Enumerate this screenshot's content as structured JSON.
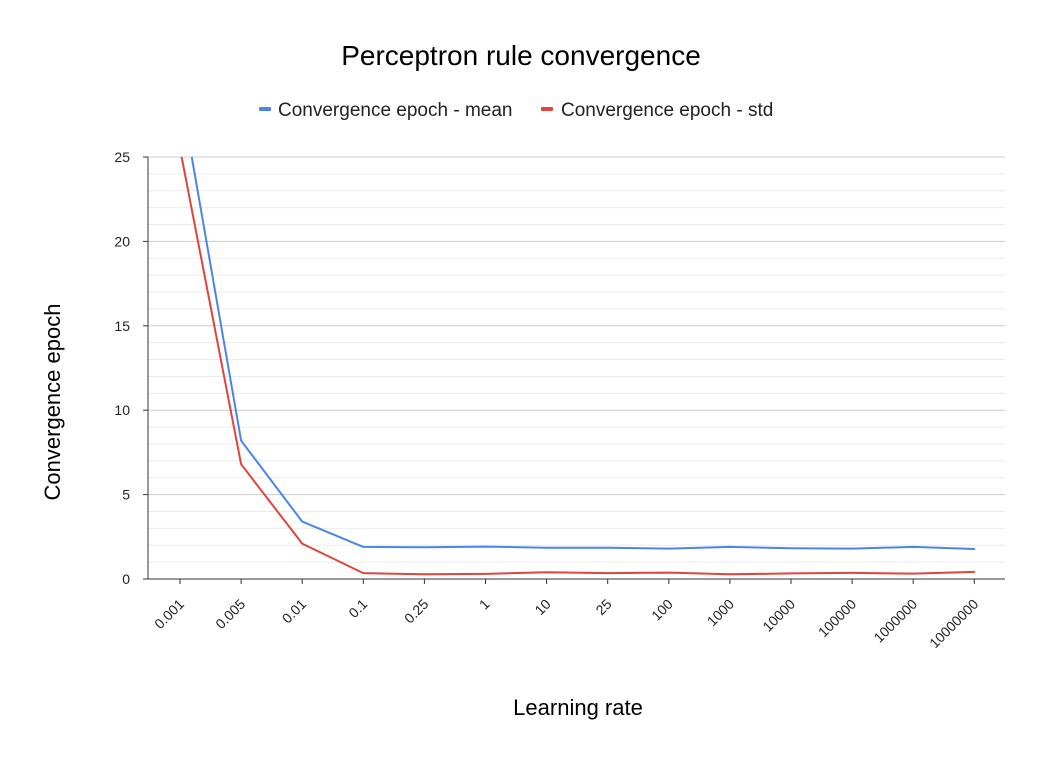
{
  "chart_data": {
    "type": "line",
    "title": "Perceptron rule convergence",
    "xlabel": "Learning rate",
    "ylabel": "Convergence epoch",
    "categories": [
      "0.001",
      "0.005",
      "0.01",
      "0.1",
      "0.25",
      "1",
      "10",
      "25",
      "100",
      "1000",
      "10000",
      "100000",
      "1000000",
      "10000000"
    ],
    "ylim": [
      0,
      25
    ],
    "yticks": [
      "0",
      "5",
      "10",
      "15",
      "20",
      "25"
    ],
    "grid": true,
    "legend_position": "top",
    "series": [
      {
        "name": "Convergence epoch - mean",
        "color": "#4a86e8",
        "values": [
          29.0,
          8.2,
          3.4,
          1.9,
          1.88,
          1.92,
          1.85,
          1.85,
          1.8,
          1.9,
          1.82,
          1.8,
          1.9,
          1.78
        ]
      },
      {
        "name": "Convergence epoch - std",
        "color": "#e0443a",
        "values": [
          25.5,
          6.8,
          2.1,
          0.35,
          0.28,
          0.3,
          0.4,
          0.35,
          0.38,
          0.28,
          0.33,
          0.36,
          0.32,
          0.42
        ]
      }
    ]
  }
}
